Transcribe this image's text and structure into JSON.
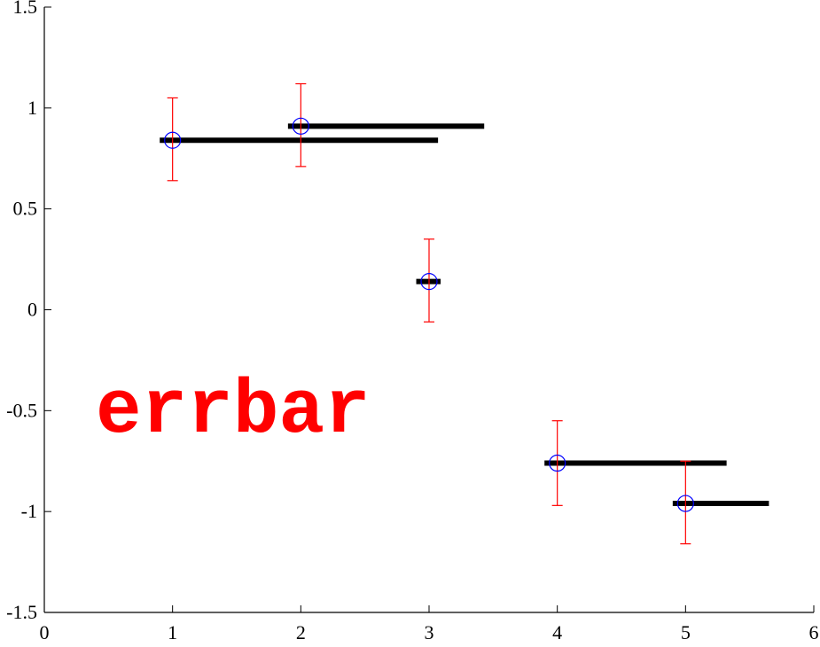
{
  "chart_data": {
    "type": "scatter",
    "title": "",
    "xlabel": "",
    "ylabel": "",
    "xlim": [
      0,
      6
    ],
    "ylim": [
      -1.5,
      1.5
    ],
    "x_ticks": [
      "0",
      "1",
      "2",
      "3",
      "4",
      "5",
      "6"
    ],
    "y_ticks": [
      "1.5",
      "1",
      "0.5",
      "0",
      "-0.5",
      "-1",
      "-1.5"
    ],
    "grid": false,
    "annotation": "errbar",
    "points": [
      {
        "x": 1,
        "y": 0.84,
        "y_lower": 0.64,
        "y_upper": 1.05,
        "bar_x_start": 0.9,
        "bar_x_end": 3.07
      },
      {
        "x": 2,
        "y": 0.91,
        "y_lower": 0.71,
        "y_upper": 1.12,
        "bar_x_start": 1.9,
        "bar_x_end": 3.43
      },
      {
        "x": 3,
        "y": 0.14,
        "y_lower": -0.06,
        "y_upper": 0.35,
        "bar_x_start": 2.9,
        "bar_x_end": 3.09
      },
      {
        "x": 4,
        "y": -0.76,
        "y_lower": -0.97,
        "y_upper": -0.55,
        "bar_x_start": 3.9,
        "bar_x_end": 5.32
      },
      {
        "x": 5,
        "y": -0.96,
        "y_lower": -1.16,
        "y_upper": -0.75,
        "bar_x_start": 4.9,
        "bar_x_end": 5.65
      }
    ],
    "colors": {
      "marker": "#0000ff",
      "error_bar": "#ff0000",
      "horizontal_bar": "#000000",
      "annotation": "#ff0000"
    }
  }
}
